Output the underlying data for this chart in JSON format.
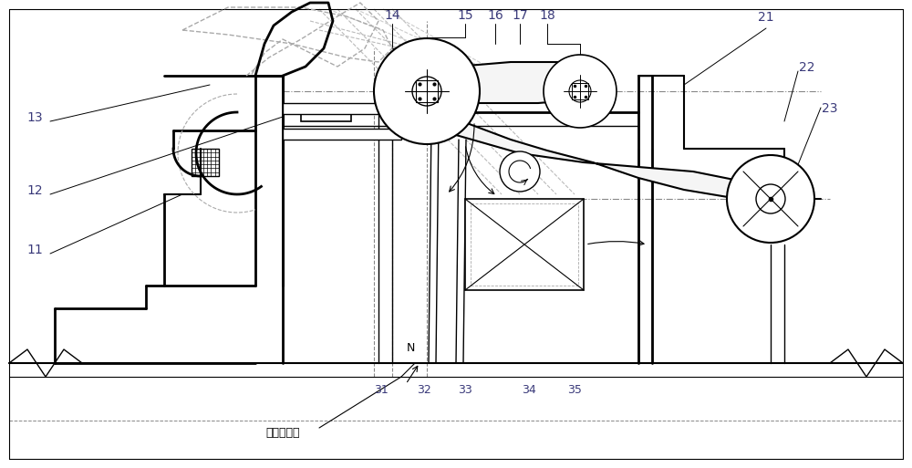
{
  "bg_color": "#ffffff",
  "lc": "#000000",
  "dc": "#aaaaaa",
  "label_color": "#3a3a7a",
  "fig_width": 10.0,
  "fig_height": 5.13,
  "centerline_text": "船闸中心线"
}
